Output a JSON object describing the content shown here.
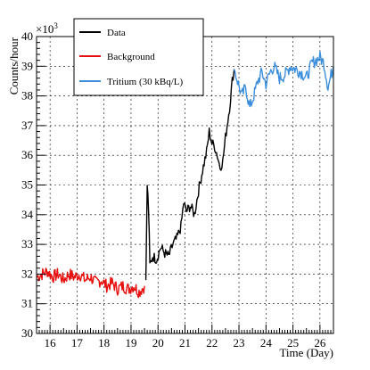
{
  "chart_data": {
    "type": "line",
    "xlabel": "Time (Day)",
    "ylabel": "Counts/hour",
    "y_multiplier": "×10",
    "y_multiplier_exp": "3",
    "xlim": [
      15.5,
      26.5
    ],
    "ylim": [
      30,
      40
    ],
    "x_ticks": [
      16,
      17,
      18,
      19,
      20,
      21,
      22,
      23,
      24,
      25,
      26
    ],
    "y_ticks": [
      30,
      31,
      32,
      33,
      34,
      35,
      36,
      37,
      38,
      39,
      40
    ],
    "grid": true,
    "legend_position": "top-left",
    "series": [
      {
        "name": "Data",
        "color": "#000000",
        "points": [
          [
            19.55,
            31.8
          ],
          [
            19.6,
            35.0
          ],
          [
            19.65,
            34.2
          ],
          [
            19.7,
            32.3
          ],
          [
            19.8,
            32.6
          ],
          [
            19.95,
            32.5
          ],
          [
            20.1,
            32.9
          ],
          [
            20.25,
            32.7
          ],
          [
            20.4,
            32.6
          ],
          [
            20.55,
            33.0
          ],
          [
            20.7,
            33.2
          ],
          [
            20.85,
            33.6
          ],
          [
            20.95,
            34.4
          ],
          [
            21.05,
            34.1
          ],
          [
            21.2,
            34.3
          ],
          [
            21.35,
            34.0
          ],
          [
            21.5,
            34.8
          ],
          [
            21.65,
            35.5
          ],
          [
            21.8,
            36.1
          ],
          [
            21.9,
            36.8
          ],
          [
            22.0,
            36.4
          ],
          [
            22.1,
            36.3
          ],
          [
            22.2,
            36.0
          ],
          [
            22.3,
            35.6
          ],
          [
            22.4,
            35.8
          ],
          [
            22.5,
            36.6
          ],
          [
            22.65,
            37.6
          ],
          [
            22.75,
            38.5
          ],
          [
            22.82,
            38.9
          ]
        ]
      },
      {
        "name": "Background",
        "color": "#e8100e",
        "points": [
          [
            15.5,
            31.9
          ],
          [
            15.7,
            32.0
          ],
          [
            15.9,
            32.1
          ],
          [
            16.1,
            31.9
          ],
          [
            16.3,
            32.0
          ],
          [
            16.5,
            31.8
          ],
          [
            16.7,
            32.0
          ],
          [
            16.9,
            31.9
          ],
          [
            17.1,
            32.0
          ],
          [
            17.3,
            31.8
          ],
          [
            17.5,
            31.9
          ],
          [
            17.7,
            31.7
          ],
          [
            17.9,
            31.8
          ],
          [
            18.1,
            31.6
          ],
          [
            18.3,
            31.7
          ],
          [
            18.5,
            31.5
          ],
          [
            18.7,
            31.6
          ],
          [
            18.9,
            31.5
          ],
          [
            19.1,
            31.6
          ],
          [
            19.3,
            31.4
          ],
          [
            19.5,
            31.6
          ]
        ]
      },
      {
        "name": "Tritium (30 kBq/L)",
        "color": "#3d8fdd",
        "points": [
          [
            22.82,
            38.9
          ],
          [
            22.95,
            38.5
          ],
          [
            23.1,
            38.0
          ],
          [
            23.25,
            38.3
          ],
          [
            23.4,
            37.6
          ],
          [
            23.55,
            38.0
          ],
          [
            23.7,
            38.5
          ],
          [
            23.85,
            38.8
          ],
          [
            24.0,
            38.4
          ],
          [
            24.15,
            38.8
          ],
          [
            24.3,
            39.0
          ],
          [
            24.5,
            38.6
          ],
          [
            24.7,
            38.7
          ],
          [
            24.9,
            39.0
          ],
          [
            25.1,
            38.9
          ],
          [
            25.3,
            38.8
          ],
          [
            25.5,
            38.6
          ],
          [
            25.7,
            39.1
          ],
          [
            25.85,
            39.2
          ],
          [
            26.0,
            39.3
          ],
          [
            26.15,
            39.1
          ],
          [
            26.3,
            38.3
          ],
          [
            26.5,
            39.0
          ]
        ]
      }
    ]
  }
}
